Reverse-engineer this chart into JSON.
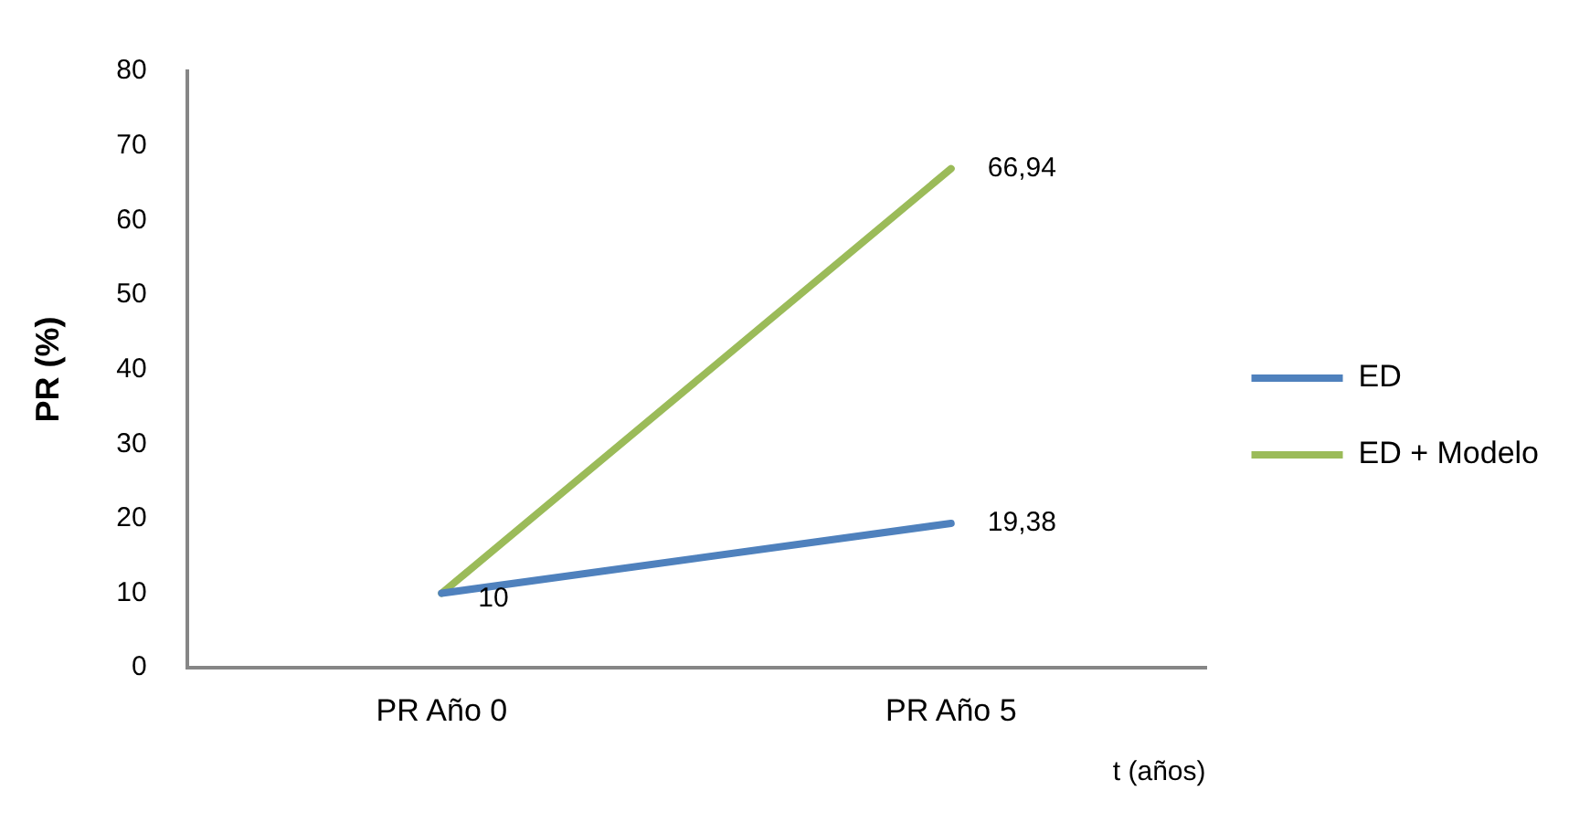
{
  "chart_data": {
    "type": "line",
    "ylabel": "PR (%)",
    "xlabel": "t (años)",
    "categories": [
      "PR Año 0",
      "PR Año 5"
    ],
    "series": [
      {
        "name": "ED",
        "color": "#4f81bd",
        "values": [
          10,
          19.38
        ],
        "value_labels": [
          "10",
          "19,38"
        ]
      },
      {
        "name": "ED + Modelo",
        "color": "#9bbb59",
        "values": [
          10,
          66.94
        ],
        "value_labels": [
          null,
          "66,94"
        ]
      }
    ],
    "ylim": [
      0,
      80
    ],
    "yticks": [
      0,
      10,
      20,
      30,
      40,
      50,
      60,
      70,
      80
    ],
    "grid": false,
    "legend": "right",
    "marker": "none",
    "line_style": "solid"
  }
}
